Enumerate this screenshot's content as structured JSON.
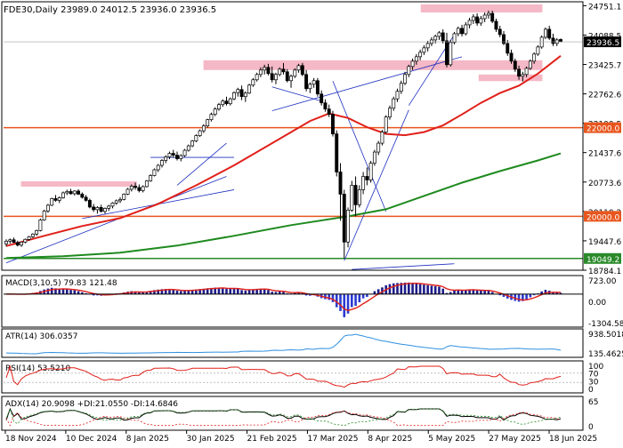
{
  "chart_data": {
    "type": "candlestick",
    "symbol_line": "FDE30,Daily  23989.0 24012.5 23936.0 23936.5",
    "last_price": "23936.5",
    "price_ticks": [
      "24751.1",
      "24088.5",
      "23425.7",
      "22762.6",
      "22100.5",
      "21437.6",
      "20773.6",
      "20110.2",
      "19447.6",
      "18784.1"
    ],
    "levels": [
      {
        "label": "22000.0",
        "value": 22000,
        "color": "#e8561e"
      },
      {
        "label": "20000.0",
        "value": 20000,
        "color": "#e8561e"
      },
      {
        "label": "19049.2",
        "value": 19049.2,
        "color": "#2a8a2a"
      }
    ],
    "zones": [
      {
        "from": 24600,
        "to": 24780,
        "start": 0.72,
        "end": 0.93
      },
      {
        "from": 23300,
        "to": 23520,
        "start": 0.345,
        "end": 0.93
      },
      {
        "from": 23050,
        "to": 23200,
        "start": 0.82,
        "end": 0.93
      },
      {
        "from": 20670,
        "to": 20790,
        "start": 0.03,
        "end": 0.23
      }
    ],
    "date_labels": [
      "18 Nov 2024",
      "10 Dec 2024",
      "8 Jan 2025",
      "30 Jan 2025",
      "21 Feb 2025",
      "17 Mar 2025",
      "8 Apr 2025",
      "5 May 2025",
      "27 May 2025",
      "18 Jun 2025"
    ],
    "candles": [
      [
        19380,
        19480,
        19320,
        19440
      ],
      [
        19440,
        19500,
        19380,
        19470
      ],
      [
        19470,
        19520,
        19400,
        19410
      ],
      [
        19410,
        19450,
        19320,
        19350
      ],
      [
        19350,
        19430,
        19310,
        19420
      ],
      [
        19420,
        19500,
        19390,
        19480
      ],
      [
        19480,
        19560,
        19450,
        19540
      ],
      [
        19540,
        19620,
        19510,
        19600
      ],
      [
        19600,
        19700,
        19560,
        19680
      ],
      [
        19680,
        19950,
        19660,
        19920
      ],
      [
        19920,
        20150,
        19900,
        20120
      ],
      [
        20120,
        20280,
        20080,
        20250
      ],
      [
        20250,
        20420,
        20230,
        20400
      ],
      [
        20400,
        20480,
        20330,
        20360
      ],
      [
        20360,
        20450,
        20300,
        20420
      ],
      [
        20420,
        20560,
        20400,
        20530
      ],
      [
        20530,
        20600,
        20480,
        20560
      ],
      [
        20560,
        20620,
        20490,
        20510
      ],
      [
        20510,
        20590,
        20470,
        20570
      ],
      [
        20570,
        20610,
        20480,
        20500
      ],
      [
        20500,
        20540,
        20400,
        20430
      ],
      [
        20430,
        20480,
        20330,
        20360
      ],
      [
        20360,
        20400,
        20180,
        20210
      ],
      [
        20210,
        20280,
        20100,
        20150
      ],
      [
        20150,
        20230,
        20060,
        20200
      ],
      [
        20200,
        20260,
        20090,
        20110
      ],
      [
        20110,
        20200,
        20060,
        20180
      ],
      [
        20180,
        20260,
        20120,
        20230
      ],
      [
        20230,
        20320,
        20180,
        20300
      ],
      [
        20300,
        20380,
        20260,
        20350
      ],
      [
        20350,
        20430,
        20300,
        20380
      ],
      [
        20380,
        20520,
        20360,
        20500
      ],
      [
        20500,
        20640,
        20480,
        20610
      ],
      [
        20610,
        20720,
        20560,
        20680
      ],
      [
        20680,
        20760,
        20600,
        20650
      ],
      [
        20650,
        20720,
        20540,
        20580
      ],
      [
        20580,
        20700,
        20540,
        20670
      ],
      [
        20670,
        20820,
        20650,
        20800
      ],
      [
        20800,
        20950,
        20780,
        20920
      ],
      [
        20920,
        21080,
        20900,
        21050
      ],
      [
        21050,
        21180,
        21000,
        21150
      ],
      [
        21150,
        21290,
        21100,
        21260
      ],
      [
        21260,
        21380,
        21200,
        21340
      ],
      [
        21340,
        21460,
        21290,
        21420
      ],
      [
        21420,
        21500,
        21320,
        21380
      ],
      [
        21380,
        21460,
        21260,
        21300
      ],
      [
        21300,
        21400,
        21240,
        21370
      ],
      [
        21370,
        21520,
        21340,
        21490
      ],
      [
        21490,
        21620,
        21460,
        21590
      ],
      [
        21590,
        21720,
        21560,
        21700
      ],
      [
        21700,
        21850,
        21670,
        21820
      ],
      [
        21820,
        21960,
        21790,
        21930
      ],
      [
        21930,
        22080,
        21880,
        22040
      ],
      [
        22040,
        22200,
        22000,
        22180
      ],
      [
        22180,
        22340,
        22140,
        22300
      ],
      [
        22300,
        22460,
        22260,
        22420
      ],
      [
        22420,
        22560,
        22380,
        22520
      ],
      [
        22520,
        22640,
        22470,
        22600
      ],
      [
        22600,
        22700,
        22500,
        22540
      ],
      [
        22540,
        22680,
        22500,
        22650
      ],
      [
        22650,
        22820,
        22620,
        22790
      ],
      [
        22790,
        22900,
        22700,
        22860
      ],
      [
        22860,
        22950,
        22620,
        22700
      ],
      [
        22700,
        22820,
        22580,
        22780
      ],
      [
        22780,
        22990,
        22760,
        22960
      ],
      [
        22960,
        23120,
        22920,
        23080
      ],
      [
        23080,
        23240,
        23040,
        23200
      ],
      [
        23200,
        23360,
        23140,
        23300
      ],
      [
        23300,
        23420,
        23200,
        23360
      ],
      [
        23360,
        23440,
        23180,
        23220
      ],
      [
        23220,
        23380,
        23020,
        23080
      ],
      [
        23080,
        23240,
        22980,
        23200
      ],
      [
        23200,
        23360,
        23160,
        23320
      ],
      [
        23320,
        23460,
        23200,
        23260
      ],
      [
        23260,
        23320,
        23020,
        23060
      ],
      [
        23060,
        23200,
        22900,
        23160
      ],
      [
        23160,
        23340,
        23120,
        23300
      ],
      [
        23300,
        23440,
        23240,
        23400
      ],
      [
        23400,
        23460,
        23160,
        23200
      ],
      [
        23200,
        23300,
        22820,
        22880
      ],
      [
        22880,
        23020,
        22780,
        22980
      ],
      [
        22980,
        23120,
        22900,
        23060
      ],
      [
        23060,
        23120,
        22700,
        22760
      ],
      [
        22760,
        22840,
        22500,
        22560
      ],
      [
        22560,
        22640,
        22360,
        22420
      ],
      [
        22420,
        22520,
        22240,
        22300
      ],
      [
        22300,
        22380,
        21800,
        21860
      ],
      [
        21860,
        21940,
        20900,
        21000
      ],
      [
        21000,
        21200,
        19900,
        20500
      ],
      [
        20500,
        20600,
        19050,
        19420
      ],
      [
        19420,
        20200,
        19300,
        20140
      ],
      [
        20140,
        20800,
        20100,
        20700
      ],
      [
        20700,
        20900,
        20000,
        20260
      ],
      [
        20260,
        20700,
        20200,
        20600
      ],
      [
        20600,
        21000,
        20500,
        20900
      ],
      [
        20900,
        21100,
        20700,
        20820
      ],
      [
        20820,
        21250,
        20760,
        21200
      ],
      [
        21200,
        21500,
        21140,
        21450
      ],
      [
        21450,
        21700,
        21380,
        21650
      ],
      [
        21650,
        21950,
        21600,
        21900
      ],
      [
        21900,
        22280,
        21860,
        22240
      ],
      [
        22240,
        22500,
        22180,
        22440
      ],
      [
        22440,
        22700,
        22380,
        22650
      ],
      [
        22650,
        22880,
        22580,
        22820
      ],
      [
        22820,
        23060,
        22760,
        23000
      ],
      [
        23000,
        23260,
        22960,
        23200
      ],
      [
        23200,
        23420,
        23140,
        23380
      ],
      [
        23380,
        23560,
        23300,
        23500
      ],
      [
        23500,
        23660,
        23420,
        23600
      ],
      [
        23600,
        23760,
        23520,
        23700
      ],
      [
        23700,
        23860,
        23640,
        23800
      ],
      [
        23800,
        23960,
        23720,
        23900
      ],
      [
        23900,
        24040,
        23840,
        23980
      ],
      [
        23980,
        24100,
        23900,
        24060
      ],
      [
        24060,
        24180,
        23980,
        24140
      ],
      [
        24140,
        24220,
        23900,
        23960
      ],
      [
        23960,
        24140,
        23360,
        23420
      ],
      [
        23420,
        23980,
        23380,
        23920
      ],
      [
        23920,
        24160,
        23880,
        24120
      ],
      [
        24120,
        24280,
        24060,
        24240
      ],
      [
        24240,
        24320,
        24060,
        24120
      ],
      [
        24120,
        24380,
        24080,
        24320
      ],
      [
        24320,
        24480,
        24240,
        24420
      ],
      [
        24420,
        24560,
        24340,
        24500
      ],
      [
        24500,
        24580,
        24300,
        24360
      ],
      [
        24360,
        24520,
        24300,
        24460
      ],
      [
        24460,
        24600,
        24380,
        24540
      ],
      [
        24540,
        24640,
        24460,
        24580
      ],
      [
        24580,
        24640,
        24360,
        24400
      ],
      [
        24400,
        24460,
        24160,
        24220
      ],
      [
        24220,
        24300,
        24040,
        24100
      ],
      [
        24100,
        24180,
        23860,
        23900
      ],
      [
        23900,
        23980,
        23620,
        23680
      ],
      [
        23680,
        23760,
        23440,
        23500
      ],
      [
        23500,
        23560,
        23260,
        23320
      ],
      [
        23320,
        23400,
        23080,
        23160
      ],
      [
        23160,
        23260,
        23040,
        23200
      ],
      [
        23200,
        23380,
        23140,
        23340
      ],
      [
        23340,
        23540,
        23300,
        23500
      ],
      [
        23500,
        23700,
        23440,
        23660
      ],
      [
        23660,
        23860,
        23620,
        23820
      ],
      [
        23820,
        24080,
        23780,
        24040
      ],
      [
        24040,
        24260,
        24000,
        24220
      ],
      [
        24220,
        24300,
        23980,
        24020
      ],
      [
        24020,
        24120,
        23840,
        23900
      ],
      [
        23900,
        24020,
        23840,
        23980
      ],
      [
        23989,
        24012.5,
        23936,
        23936.5
      ]
    ],
    "ma_red": [
      [
        0,
        19330
      ],
      [
        10,
        19560
      ],
      [
        20,
        19780
      ],
      [
        30,
        19960
      ],
      [
        40,
        20280
      ],
      [
        50,
        20700
      ],
      [
        60,
        21150
      ],
      [
        70,
        21650
      ],
      [
        80,
        22150
      ],
      [
        85,
        22320
      ],
      [
        90,
        22220
      ],
      [
        95,
        22010
      ],
      [
        100,
        21860
      ],
      [
        105,
        21830
      ],
      [
        110,
        21900
      ],
      [
        115,
        22050
      ],
      [
        120,
        22300
      ],
      [
        125,
        22560
      ],
      [
        130,
        22780
      ],
      [
        135,
        22950
      ],
      [
        140,
        23220
      ],
      [
        146,
        23620
      ]
    ],
    "ma_green": [
      [
        0,
        19060
      ],
      [
        15,
        19100
      ],
      [
        30,
        19180
      ],
      [
        45,
        19340
      ],
      [
        60,
        19560
      ],
      [
        75,
        19800
      ],
      [
        90,
        20000
      ],
      [
        100,
        20160
      ],
      [
        110,
        20460
      ],
      [
        120,
        20760
      ],
      [
        130,
        21020
      ],
      [
        140,
        21260
      ],
      [
        146,
        21420
      ]
    ],
    "indicators": [
      {
        "name": "MACD",
        "label": "MACD(3,10,5) 79.83 121.48",
        "ticks": [
          "723.00",
          "0.00",
          "-1304.58"
        ]
      },
      {
        "name": "ATR",
        "label": "ATR(14) 306.0357",
        "ticks": [
          "938.5018",
          "135.4625"
        ]
      },
      {
        "name": "RSI",
        "label": "RSI(14) 53.5210",
        "ticks": [
          "100",
          "70",
          "30",
          "0"
        ]
      },
      {
        "name": "ADX",
        "label": "ADX(14) 20.9098 +DI:21.0550 -DI:14.6846",
        "ticks": [
          "65",
          "0"
        ]
      }
    ],
    "colors": {
      "bull": "#1d4fe6",
      "bear": "#0a0a6e",
      "candle_body_bull": "#ffffff",
      "candle_body_bear": "#000000",
      "zone": "#f5b8c6",
      "ma_red": "#e0201a",
      "ma_green": "#1e8a1e",
      "orange_line": "#e8561e",
      "trendline": "#1e2fbf"
    }
  }
}
